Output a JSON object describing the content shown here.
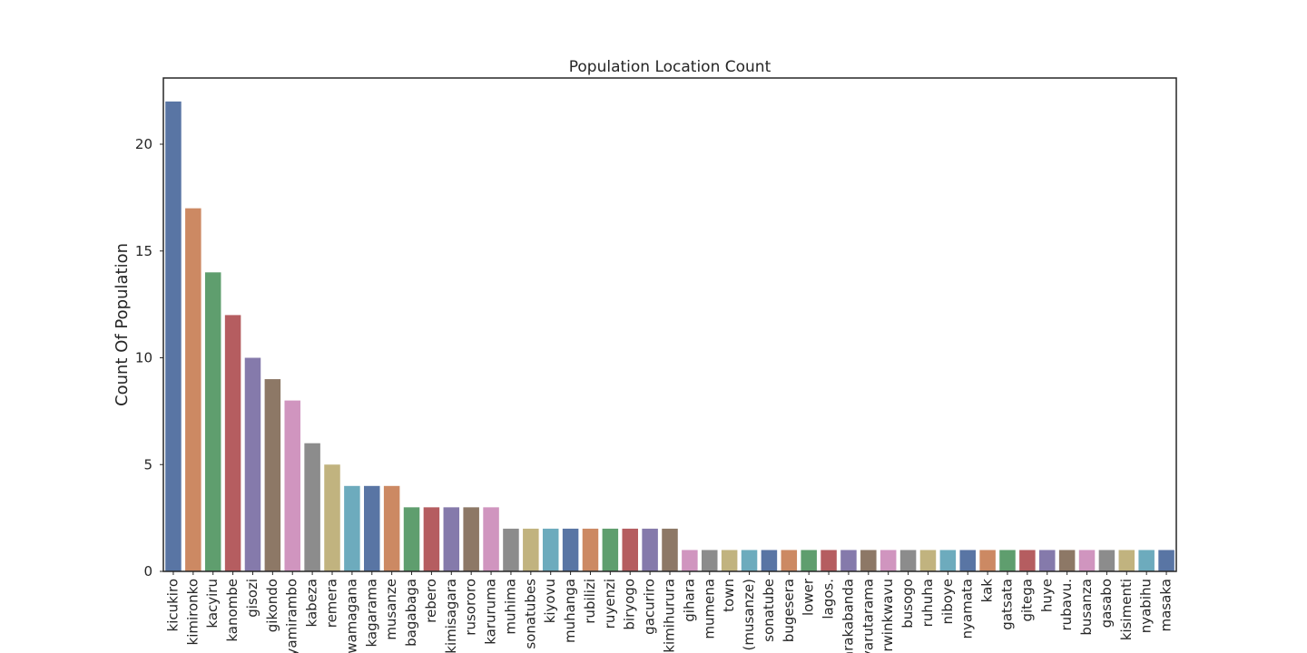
{
  "chart_data": {
    "type": "bar",
    "title": "Population Location Count",
    "xlabel": "",
    "ylabel": "Count Of Population",
    "ylim": [
      0,
      23.1
    ],
    "yticks": [
      0,
      5,
      10,
      15,
      20
    ],
    "grid": false,
    "legend": "none",
    "categories": [
      "kicukiro",
      "kimironko",
      "kacyiru",
      "kanombe",
      "gisozi",
      "gikondo",
      "nyamirambo",
      "kabeza",
      "remera",
      "rwamagana",
      "kagarama",
      "musanze",
      "bagabaga",
      "rebero",
      "kimisagara",
      "rusororo",
      "karuruma",
      "muhima",
      "sonatubes",
      "kiyovu",
      "muhanga",
      "rubilizi",
      "ruyenzi",
      "biryogo",
      "gacuriro",
      "kimihurura",
      "gihara",
      "mumena",
      "town",
      "(musanze)",
      "sonatube",
      "bugesera",
      "lower",
      "lagos.",
      "nyarakabanda",
      "nyarutarama",
      "rwinkwavu",
      "busogo",
      "ruhuha",
      "niboye",
      "nyamata",
      "kak",
      "gatsata",
      "gitega",
      "huye",
      "rubavu.",
      "busanza",
      "gasabo",
      "kisimenti",
      "nyabihu",
      "masaka"
    ],
    "values": [
      22,
      17,
      14,
      12,
      10,
      9,
      8,
      6,
      5,
      4,
      4,
      4,
      3,
      3,
      3,
      3,
      3,
      2,
      2,
      2,
      2,
      2,
      2,
      2,
      2,
      2,
      1,
      1,
      1,
      1,
      1,
      1,
      1,
      1,
      1,
      1,
      1,
      1,
      1,
      1,
      1,
      1,
      1,
      1,
      1,
      1,
      1,
      1,
      1,
      1,
      1
    ],
    "palette": [
      "#5975a4",
      "#cc8963",
      "#5f9e6e",
      "#b55d60",
      "#857aab",
      "#8d7866",
      "#d095bf",
      "#8c8c8c",
      "#c1b37f",
      "#6dabbd"
    ]
  }
}
